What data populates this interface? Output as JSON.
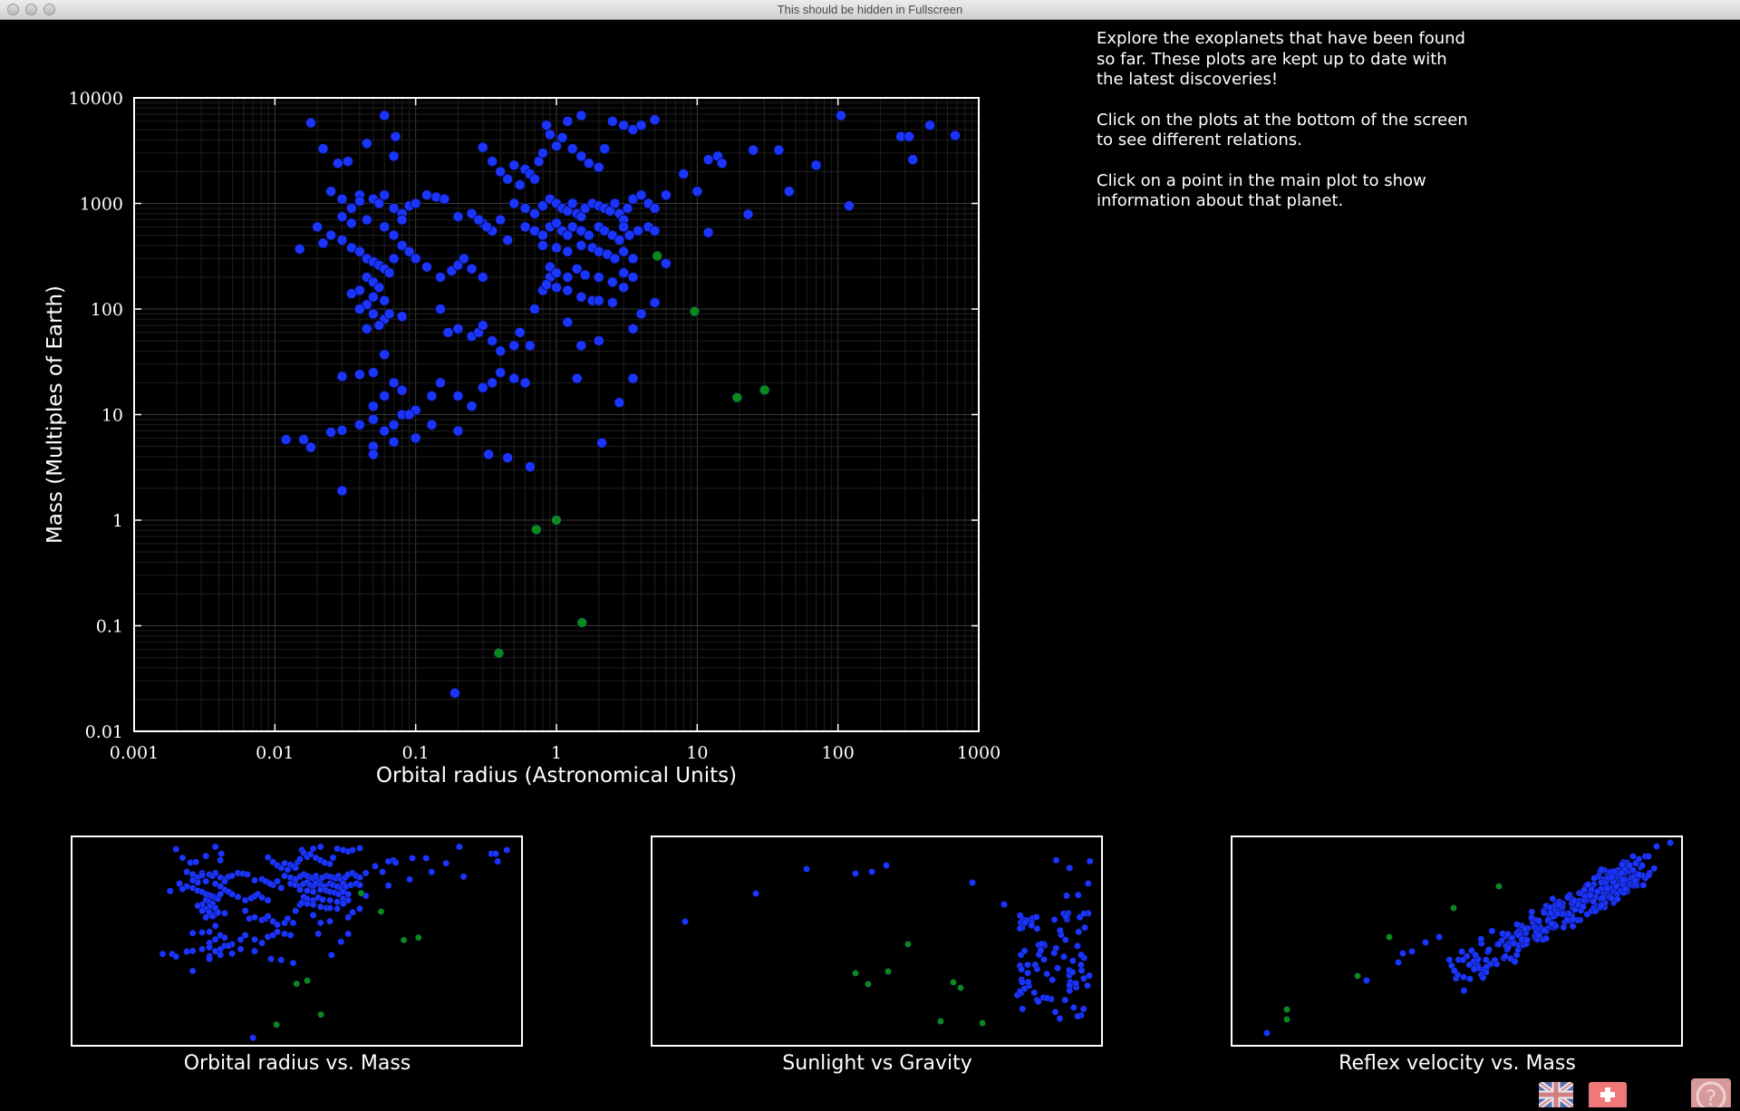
{
  "window": {
    "title": "This should be hidden in Fullscreen"
  },
  "info": {
    "paragraphs": [
      "Explore the exoplanets that have been found so far. These plots are kept up to date with the latest discoveries!",
      "Click on the plots at the bottom of the screen to see different relations.",
      "Click on a point in the main plot to show information about that planet."
    ]
  },
  "colors": {
    "exoplanet": "#1a35ff",
    "solar_system": "#0a8a1a",
    "frame": "#ffffff",
    "grid": "#2a2a2a"
  },
  "chart_data": [
    {
      "type": "scatter",
      "xlabel": "Orbital radius (Astronomical Units)",
      "ylabel": "Mass (Multiples of Earth)",
      "xscale": "log",
      "yscale": "log",
      "xlim": [
        0.001,
        1000
      ],
      "ylim": [
        0.01,
        10000
      ],
      "xticks": [
        "0.001",
        "0.01",
        "0.1",
        "1",
        "10",
        "100",
        "1000"
      ],
      "yticks": [
        "0.01",
        "0.1",
        "1",
        "10",
        "100",
        "1000",
        "10000"
      ],
      "grid": true,
      "series": [
        {
          "color": "#1a35ff",
          "points": [
            [
              0.018,
              5800
            ],
            [
              0.022,
              3300
            ],
            [
              0.028,
              2400
            ],
            [
              0.033,
              2500
            ],
            [
              0.04,
              1200
            ],
            [
              0.045,
              3700
            ],
            [
              0.06,
              6800
            ],
            [
              0.07,
              2800
            ],
            [
              0.072,
              4300
            ],
            [
              0.025,
              1300
            ],
            [
              0.03,
              1100
            ],
            [
              0.035,
              900
            ],
            [
              0.04,
              1050
            ],
            [
              0.05,
              1100
            ],
            [
              0.055,
              1000
            ],
            [
              0.06,
              1200
            ],
            [
              0.07,
              900
            ],
            [
              0.08,
              800
            ],
            [
              0.09,
              950
            ],
            [
              0.1,
              1000
            ],
            [
              0.12,
              1200
            ],
            [
              0.14,
              1150
            ],
            [
              0.16,
              1100
            ],
            [
              0.02,
              600
            ],
            [
              0.025,
              500
            ],
            [
              0.03,
              450
            ],
            [
              0.035,
              380
            ],
            [
              0.04,
              350
            ],
            [
              0.045,
              300
            ],
            [
              0.05,
              280
            ],
            [
              0.055,
              260
            ],
            [
              0.06,
              240
            ],
            [
              0.065,
              220
            ],
            [
              0.07,
              300
            ],
            [
              0.045,
              200
            ],
            [
              0.05,
              180
            ],
            [
              0.055,
              160
            ],
            [
              0.04,
              150
            ],
            [
              0.035,
              140
            ],
            [
              0.05,
              130
            ],
            [
              0.06,
              120
            ],
            [
              0.045,
              110
            ],
            [
              0.04,
              100
            ],
            [
              0.05,
              90
            ],
            [
              0.06,
              80
            ],
            [
              0.055,
              70
            ],
            [
              0.045,
              65
            ],
            [
              0.08,
              400
            ],
            [
              0.09,
              350
            ],
            [
              0.1,
              300
            ],
            [
              0.12,
              250
            ],
            [
              0.15,
              200
            ],
            [
              0.18,
              230
            ],
            [
              0.2,
              260
            ],
            [
              0.22,
              300
            ],
            [
              0.25,
              240
            ],
            [
              0.3,
              200
            ],
            [
              0.015,
              370
            ],
            [
              0.022,
              420
            ],
            [
              0.035,
              650
            ],
            [
              0.045,
              700
            ],
            [
              0.06,
              600
            ],
            [
              0.07,
              500
            ],
            [
              0.08,
              700
            ],
            [
              0.03,
              750
            ],
            [
              0.065,
              90
            ],
            [
              0.08,
              85
            ],
            [
              0.15,
              100
            ],
            [
              0.17,
              60
            ],
            [
              0.2,
              65
            ],
            [
              0.25,
              55
            ],
            [
              0.28,
              60
            ],
            [
              0.3,
              70
            ],
            [
              0.35,
              50
            ],
            [
              0.4,
              40
            ],
            [
              0.5,
              45
            ],
            [
              0.55,
              60
            ],
            [
              0.65,
              45
            ],
            [
              0.7,
              100
            ],
            [
              0.8,
              150
            ],
            [
              0.9,
              200
            ],
            [
              0.06,
              37
            ],
            [
              0.05,
              25
            ],
            [
              0.04,
              24
            ],
            [
              0.03,
              23
            ],
            [
              0.07,
              20
            ],
            [
              0.08,
              17
            ],
            [
              0.06,
              15
            ],
            [
              0.05,
              12
            ],
            [
              0.09,
              10
            ],
            [
              0.1,
              11
            ],
            [
              0.13,
              15
            ],
            [
              0.15,
              20
            ],
            [
              0.2,
              15
            ],
            [
              0.25,
              12
            ],
            [
              0.3,
              18
            ],
            [
              0.35,
              20
            ],
            [
              0.4,
              25
            ],
            [
              0.5,
              22
            ],
            [
              0.6,
              20
            ],
            [
              0.04,
              8
            ],
            [
              0.05,
              9
            ],
            [
              0.06,
              7
            ],
            [
              0.07,
              8
            ],
            [
              0.08,
              10
            ],
            [
              0.09,
              10
            ],
            [
              0.05,
              5
            ],
            [
              0.05,
              4.2
            ],
            [
              0.07,
              5.5
            ],
            [
              0.1,
              6
            ],
            [
              0.13,
              8
            ],
            [
              0.2,
              7
            ],
            [
              0.016,
              5.8
            ],
            [
              0.018,
              4.9
            ],
            [
              0.012,
              5.8
            ],
            [
              0.025,
              6.8
            ],
            [
              0.03,
              7.1
            ],
            [
              0.03,
              1.9
            ],
            [
              0.33,
              4.2
            ],
            [
              0.45,
              3.9
            ],
            [
              0.65,
              3.2
            ],
            [
              2.1,
              5.4
            ],
            [
              2.8,
              13
            ],
            [
              3.5,
              22
            ],
            [
              1.4,
              22
            ],
            [
              0.19,
              0.023
            ],
            [
              0.3,
              3400
            ],
            [
              0.35,
              2500
            ],
            [
              0.4,
              2000
            ],
            [
              0.45,
              1700
            ],
            [
              0.5,
              2300
            ],
            [
              0.55,
              1500
            ],
            [
              0.6,
              2100
            ],
            [
              0.65,
              1900
            ],
            [
              0.7,
              1700
            ],
            [
              0.75,
              2500
            ],
            [
              0.8,
              3000
            ],
            [
              0.85,
              5500
            ],
            [
              0.9,
              4500
            ],
            [
              1.0,
              3500
            ],
            [
              1.1,
              4200
            ],
            [
              1.2,
              6000
            ],
            [
              1.3,
              3300
            ],
            [
              1.5,
              2800
            ],
            [
              1.7,
              2400
            ],
            [
              2.0,
              2200
            ],
            [
              2.2,
              3300
            ],
            [
              2.5,
              6000
            ],
            [
              3.0,
              5500
            ],
            [
              3.5,
              5000
            ],
            [
              4.0,
              5500
            ],
            [
              5.0,
              6200
            ],
            [
              1.5,
              6800
            ],
            [
              0.5,
              1000
            ],
            [
              0.6,
              900
            ],
            [
              0.7,
              800
            ],
            [
              0.8,
              950
            ],
            [
              0.9,
              1100
            ],
            [
              1.0,
              1000
            ],
            [
              1.1,
              900
            ],
            [
              1.2,
              850
            ],
            [
              1.3,
              1000
            ],
            [
              1.4,
              800
            ],
            [
              1.5,
              750
            ],
            [
              1.6,
              900
            ],
            [
              1.8,
              1000
            ],
            [
              2.0,
              950
            ],
            [
              2.2,
              900
            ],
            [
              2.4,
              850
            ],
            [
              2.6,
              1000
            ],
            [
              2.8,
              800
            ],
            [
              3.0,
              700
            ],
            [
              3.2,
              900
            ],
            [
              3.5,
              1100
            ],
            [
              4.0,
              1200
            ],
            [
              4.5,
              1000
            ],
            [
              5.0,
              900
            ],
            [
              6.0,
              1200
            ],
            [
              0.6,
              600
            ],
            [
              0.7,
              550
            ],
            [
              0.8,
              500
            ],
            [
              0.9,
              600
            ],
            [
              1.0,
              650
            ],
            [
              1.1,
              550
            ],
            [
              1.2,
              500
            ],
            [
              1.3,
              600
            ],
            [
              1.5,
              550
            ],
            [
              1.7,
              500
            ],
            [
              2.0,
              600
            ],
            [
              2.2,
              550
            ],
            [
              2.5,
              500
            ],
            [
              2.8,
              450
            ],
            [
              3.0,
              600
            ],
            [
              3.3,
              500
            ],
            [
              3.8,
              550
            ],
            [
              4.5,
              600
            ],
            [
              5.0,
              550
            ],
            [
              0.8,
              400
            ],
            [
              1.0,
              380
            ],
            [
              1.2,
              350
            ],
            [
              1.5,
              400
            ],
            [
              1.8,
              380
            ],
            [
              2.0,
              350
            ],
            [
              2.3,
              330
            ],
            [
              2.6,
              300
            ],
            [
              3.0,
              350
            ],
            [
              3.5,
              300
            ],
            [
              0.9,
              250
            ],
            [
              1.0,
              220
            ],
            [
              1.2,
              200
            ],
            [
              1.4,
              240
            ],
            [
              1.6,
              210
            ],
            [
              2.0,
              200
            ],
            [
              2.5,
              180
            ],
            [
              3.0,
              220
            ],
            [
              3.5,
              200
            ],
            [
              6.0,
              270
            ],
            [
              0.85,
              170
            ],
            [
              1.0,
              160
            ],
            [
              1.2,
              150
            ],
            [
              1.5,
              130
            ],
            [
              1.8,
              120
            ],
            [
              2.0,
              120
            ],
            [
              2.5,
              115
            ],
            [
              3.0,
              160
            ],
            [
              4.0,
              90
            ],
            [
              5.0,
              115
            ],
            [
              1.2,
              75
            ],
            [
              1.5,
              45
            ],
            [
              2.0,
              50
            ],
            [
              3.5,
              65
            ],
            [
              0.3,
              650
            ],
            [
              0.35,
              550
            ],
            [
              0.4,
              700
            ],
            [
              0.45,
              450
            ],
            [
              0.25,
              800
            ],
            [
              0.2,
              750
            ],
            [
              0.28,
              700
            ],
            [
              0.32,
              600
            ],
            [
              8.0,
              1900
            ],
            [
              10.0,
              1300
            ],
            [
              12.0,
              2600
            ],
            [
              14.0,
              2800
            ],
            [
              15.0,
              2400
            ],
            [
              25.0,
              3200
            ],
            [
              38.0,
              3200
            ],
            [
              45.0,
              1300
            ],
            [
              70.0,
              2300
            ],
            [
              105.0,
              6800
            ],
            [
              120.0,
              950
            ],
            [
              280.0,
              4300
            ],
            [
              320.0,
              4300
            ],
            [
              340.0,
              2600
            ],
            [
              450.0,
              5500
            ],
            [
              680.0,
              4400
            ],
            [
              12.0,
              530
            ],
            [
              23.0,
              790
            ]
          ]
        },
        {
          "color": "#0a8a1a",
          "points": [
            [
              0.39,
              0.055
            ],
            [
              0.72,
              0.815
            ],
            [
              1.0,
              1.0
            ],
            [
              1.52,
              0.107
            ],
            [
              5.2,
              318
            ],
            [
              9.58,
              95
            ],
            [
              19.2,
              14.5
            ],
            [
              30.1,
              17.1
            ]
          ]
        }
      ]
    },
    {
      "type": "scatter",
      "title": "Orbital radius vs. Mass"
    },
    {
      "type": "scatter",
      "title": "Sunlight vs Gravity"
    },
    {
      "type": "scatter",
      "title": "Reflex velocity vs. Mass"
    }
  ]
}
